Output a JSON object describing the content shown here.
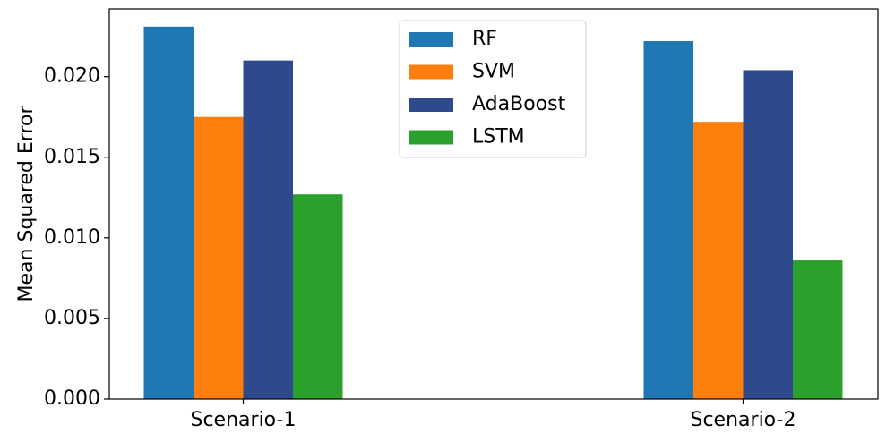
{
  "chart_data": {
    "type": "bar",
    "title": "",
    "xlabel": "",
    "ylabel": "Mean Squared Error",
    "categories": [
      "Scenario-1",
      "Scenario-2"
    ],
    "series": [
      {
        "name": "RF",
        "color": "#1f77b4",
        "values": [
          0.0231,
          0.0222
        ]
      },
      {
        "name": "SVM",
        "color": "#ff7f0e",
        "values": [
          0.0175,
          0.0172
        ]
      },
      {
        "name": "AdaBoost",
        "color": "#2e4a8c",
        "values": [
          0.021,
          0.0204
        ]
      },
      {
        "name": "LSTM",
        "color": "#2ca02c",
        "values": [
          0.0127,
          0.0086
        ]
      }
    ],
    "ylim": [
      0,
      0.0242
    ],
    "yticks": [
      "0.000",
      "0.005",
      "0.010",
      "0.015",
      "0.020"
    ],
    "grid": false,
    "legend_position": "top-center"
  }
}
